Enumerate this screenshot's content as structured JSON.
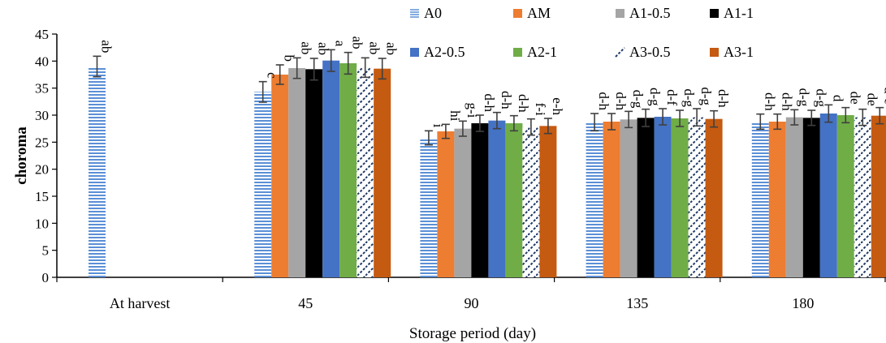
{
  "chart_data": {
    "type": "bar",
    "xlabel": "Storage period (day)",
    "ylabel": "choroma",
    "ylim": [
      0,
      45
    ],
    "yticks": [
      0,
      5,
      10,
      15,
      20,
      25,
      30,
      35,
      40,
      45
    ],
    "grid": false,
    "legend_position": "top-right",
    "categories": [
      "At harvest",
      "45",
      "90",
      "135",
      "180"
    ],
    "series": [
      {
        "name": "A0",
        "color": "#5b8fd6",
        "pattern": "horizontal-stripes",
        "values": [
          39.0,
          34.3,
          25.8,
          28.7,
          28.8
        ],
        "errors": [
          1.9,
          1.9,
          1.3,
          1.6,
          1.4
        ],
        "labels": [
          "ab",
          "c",
          "i",
          "d-h",
          "d-h"
        ]
      },
      {
        "name": "AM",
        "color": "#ed7d31",
        "pattern": "solid",
        "values": [
          null,
          37.5,
          27.0,
          28.8,
          28.8
        ],
        "errors": [
          null,
          1.8,
          1.3,
          1.5,
          1.4
        ],
        "labels": [
          null,
          "b",
          "hi",
          "d-h",
          "d-h"
        ]
      },
      {
        "name": "A1-0.5",
        "color": "#a5a5a5",
        "pattern": "solid",
        "values": [
          null,
          38.7,
          27.5,
          29.2,
          29.6
        ],
        "errors": [
          null,
          1.9,
          1.4,
          1.5,
          1.4
        ],
        "labels": [
          null,
          "ab",
          "g-i",
          "d-g",
          "d-g"
        ]
      },
      {
        "name": "A1-1",
        "color": "#000000",
        "pattern": "solid",
        "values": [
          null,
          38.5,
          28.5,
          29.5,
          29.5
        ],
        "errors": [
          null,
          2.0,
          1.5,
          1.6,
          1.4
        ],
        "labels": [
          null,
          "ab",
          "d-h",
          "d-g",
          "d-g"
        ]
      },
      {
        "name": "A2-0.5",
        "color": "#4472c4",
        "pattern": "solid",
        "values": [
          null,
          40.1,
          29.0,
          29.7,
          30.3
        ],
        "errors": [
          null,
          2.0,
          1.5,
          1.5,
          1.6
        ],
        "labels": [
          null,
          "a",
          "d-h",
          "d-f",
          "d"
        ]
      },
      {
        "name": "A2-1",
        "color": "#70ad47",
        "pattern": "solid",
        "values": [
          null,
          39.6,
          28.5,
          29.4,
          30.0
        ],
        "errors": [
          null,
          2.0,
          1.4,
          1.5,
          1.4
        ],
        "labels": [
          null,
          "ab",
          "d-h",
          "d-g",
          "de"
        ]
      },
      {
        "name": "A3-0.5",
        "color": "#1f3864",
        "pattern": "diagonal-dash",
        "values": [
          null,
          38.8,
          27.8,
          29.6,
          29.6
        ],
        "errors": [
          null,
          1.8,
          1.5,
          1.6,
          1.5
        ],
        "labels": [
          null,
          "ab",
          "f-i",
          "d-g",
          "de"
        ]
      },
      {
        "name": "A3-1",
        "color": "#c55a11",
        "pattern": "solid",
        "values": [
          null,
          38.6,
          28.0,
          29.3,
          29.9
        ],
        "errors": [
          null,
          1.9,
          1.4,
          1.5,
          1.5
        ],
        "labels": [
          null,
          "ab",
          "e-h",
          "d-h",
          "d-e"
        ]
      }
    ]
  }
}
